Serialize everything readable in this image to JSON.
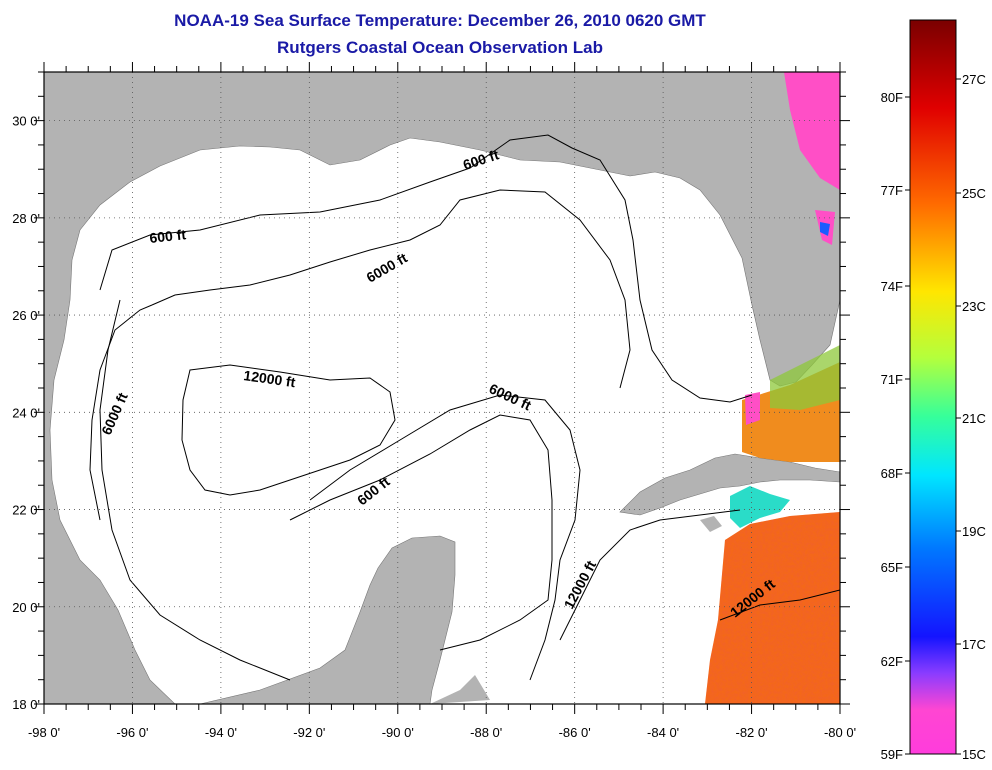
{
  "title": "NOAA-19 Sea Surface Temperature:  December 26, 2010 0620 GMT",
  "subtitle": "Rutgers Coastal Ocean Observation Lab",
  "map": {
    "lon_range": [
      -98,
      -80
    ],
    "lat_range": [
      18,
      31
    ],
    "lon_ticks": [
      "-98 0'",
      "-96 0'",
      "-94 0'",
      "-92 0'",
      "-90 0'",
      "-88 0'",
      "-86 0'",
      "-84 0'",
      "-82 0'",
      "-80 0'"
    ],
    "lat_ticks": [
      "18 0'",
      "20 0'",
      "22 0'",
      "24 0'",
      "26 0'",
      "28 0'",
      "30 0'"
    ],
    "land_color": "#b3b3b3",
    "water_color": "#ffffff",
    "contour_labels": [
      "600 ft",
      "600 ft",
      "6000 ft",
      "12000 ft",
      "6000 ft",
      "6000 ft",
      "600 ft",
      "12000 ft",
      "12000 ft"
    ]
  },
  "colorbar": {
    "fahrenheit_labels": [
      "80F",
      "77F",
      "74F",
      "71F",
      "68F",
      "65F",
      "62F",
      "59F"
    ],
    "celsius_labels": [
      "27C",
      "25C",
      "23C",
      "21C",
      "19C",
      "17C",
      "15C"
    ],
    "gradient_stops": [
      "#7a0000",
      "#e00000",
      "#ff6a00",
      "#ffd200",
      "#c8ff3c",
      "#36ff9a",
      "#00e6ff",
      "#0078ff",
      "#1414ff",
      "#8a3cff",
      "#ff46d2",
      "#ff3cdc"
    ]
  }
}
